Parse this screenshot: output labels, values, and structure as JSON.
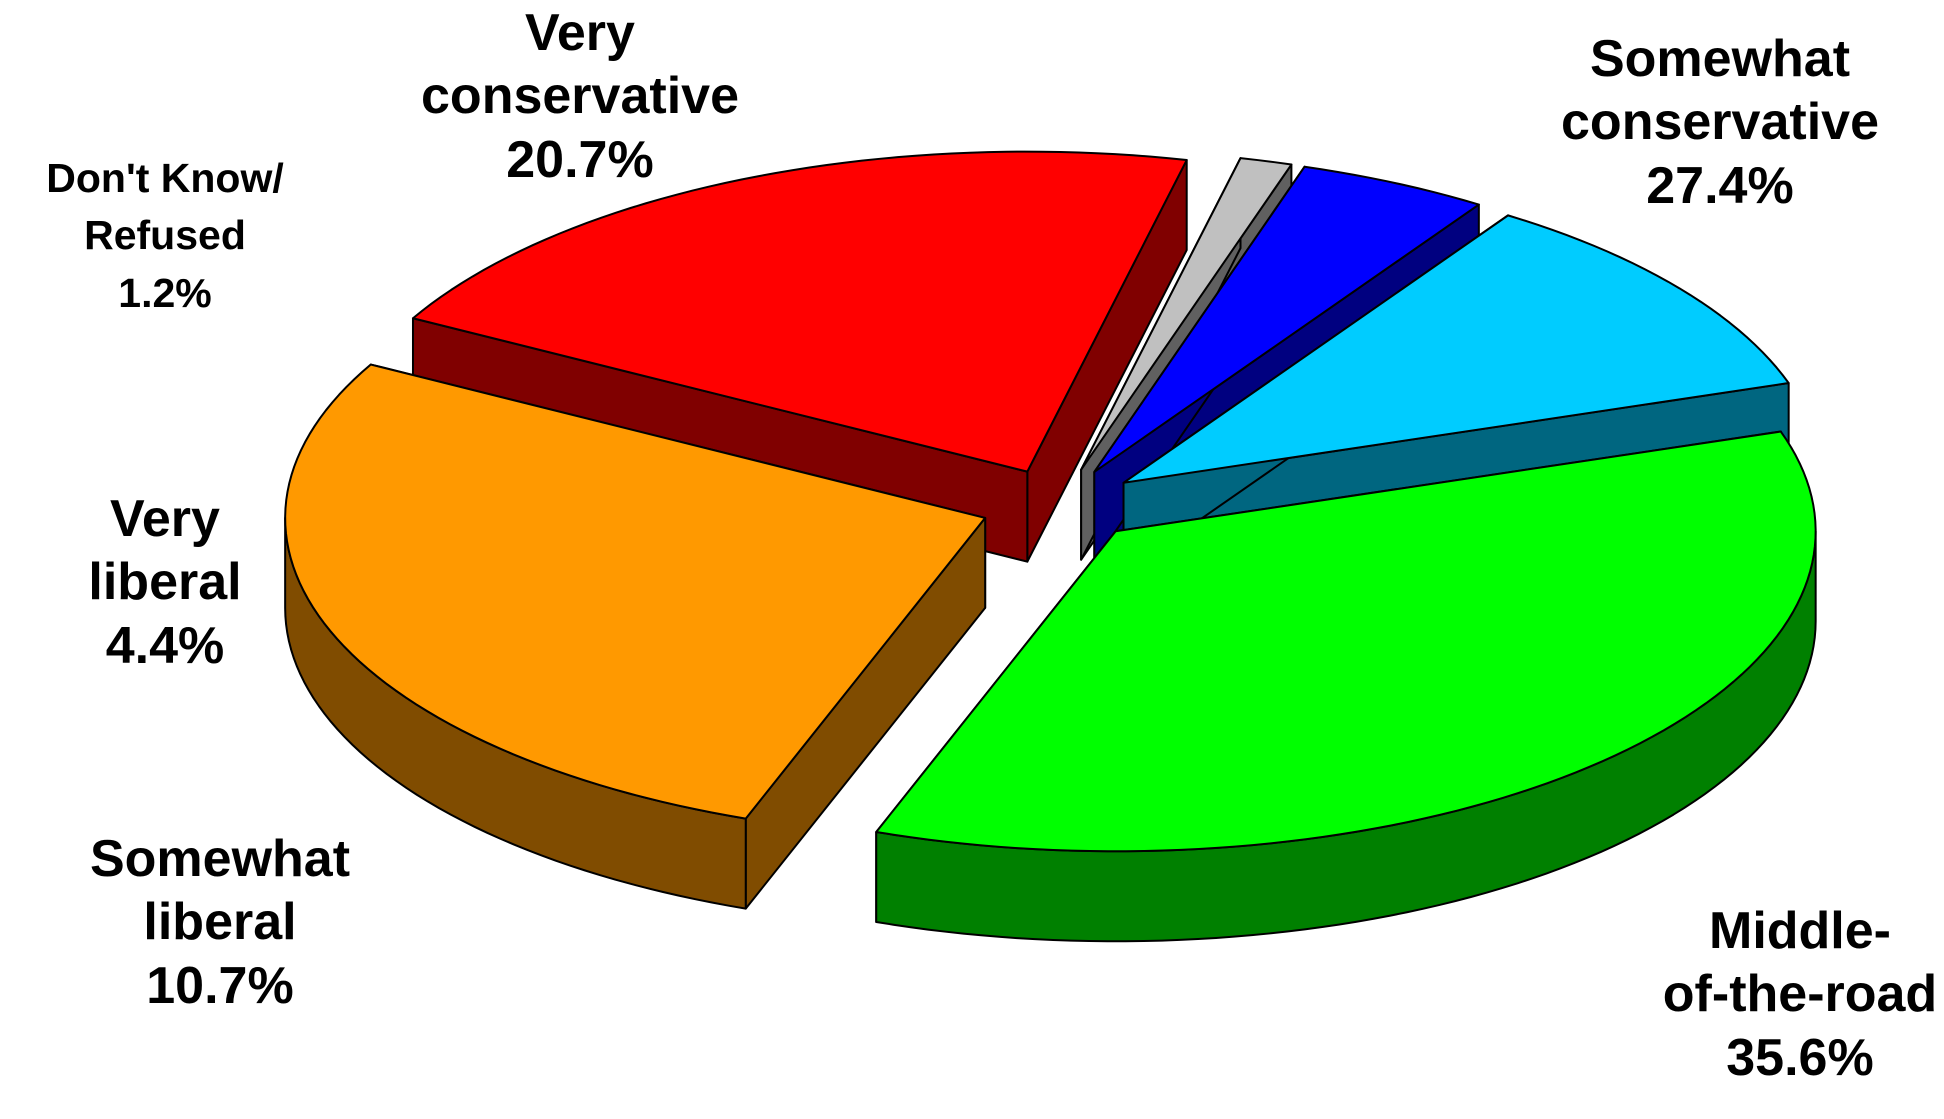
{
  "chart_data": {
    "type": "pie",
    "three_d": true,
    "exploded": true,
    "title": "",
    "slices": [
      {
        "name_lines": [
          "Middle-",
          "of-the-road"
        ],
        "value": 35.6,
        "value_label": "35.6%",
        "color": "#00ff00",
        "side_color": "#008000"
      },
      {
        "name_lines": [
          "Somewhat",
          "liberal"
        ],
        "value": 10.7,
        "value_label": "10.7%",
        "color": "#00ccff",
        "side_color": "#006680"
      },
      {
        "name_lines": [
          "Very",
          "liberal"
        ],
        "value": 4.4,
        "value_label": "4.4%",
        "color": "#0000ff",
        "side_color": "#000080"
      },
      {
        "name_lines": [
          "Don't Know/",
          "Refused"
        ],
        "value": 1.2,
        "value_label": "1.2%",
        "color": "#c0c0c0",
        "side_color": "#606060"
      },
      {
        "name_lines": [
          "Very",
          "conservative"
        ],
        "value": 20.7,
        "value_label": "20.7%",
        "color": "#ff0000",
        "side_color": "#800000"
      },
      {
        "name_lines": [
          "Somewhat",
          "conservative"
        ],
        "value": 27.4,
        "value_label": "27.4%",
        "color": "#ff9900",
        "side_color": "#804c00"
      }
    ]
  }
}
